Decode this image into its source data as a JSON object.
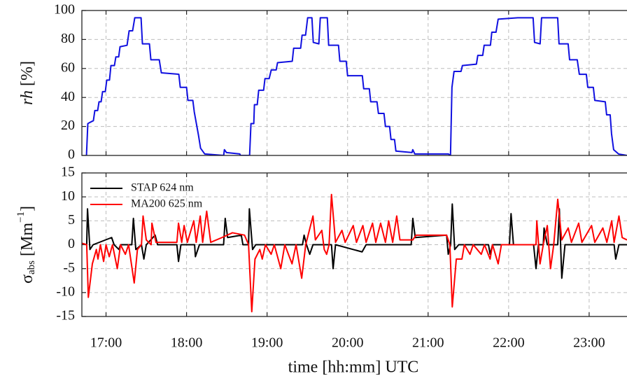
{
  "chart_data": [
    {
      "type": "line",
      "ylabel": {
        "italic": "rh",
        "unit": "[%]"
      },
      "xlim": [
        16.7,
        23.47
      ],
      "ylim": [
        0,
        100
      ],
      "xticks": [
        17,
        18,
        19,
        20,
        21,
        22,
        23
      ],
      "show_xtick_labels": false,
      "yticks": [
        0,
        20,
        40,
        60,
        80,
        100
      ],
      "grid": true,
      "series": [
        {
          "color": "#1010e0",
          "x": [
            16.757,
            16.774,
            16.843,
            16.861,
            16.896,
            16.913,
            16.939,
            16.957,
            16.991,
            17.009,
            17.043,
            17.061,
            17.104,
            17.122,
            17.157,
            17.174,
            17.261,
            17.287,
            17.33,
            17.357,
            17.435,
            17.452,
            17.539,
            17.557,
            17.661,
            17.687,
            17.904,
            17.922,
            18.0,
            18.017,
            18.078,
            18.096,
            18.122,
            18.148,
            18.174,
            18.226,
            18.461,
            18.47,
            18.496,
            18.661,
            18.67,
            18.783,
            18.8,
            18.835,
            18.843,
            18.878,
            18.896,
            18.957,
            18.974,
            19.026,
            19.052,
            19.113,
            19.13,
            19.313,
            19.33,
            19.417,
            19.435,
            19.478,
            19.504,
            19.557,
            19.574,
            19.643,
            19.661,
            19.748,
            19.765,
            19.887,
            19.904,
            19.983,
            20.0,
            20.183,
            20.2,
            20.27,
            20.287,
            20.365,
            20.383,
            20.452,
            20.47,
            20.522,
            20.539,
            20.583,
            20.6,
            20.8,
            20.809,
            20.835,
            21.252,
            21.278,
            21.296,
            21.322,
            21.409,
            21.426,
            21.6,
            21.617,
            21.678,
            21.696,
            21.774,
            21.791,
            21.843,
            21.87,
            22.113,
            22.304,
            22.322,
            22.391,
            22.409,
            22.609,
            22.626,
            22.739,
            22.757,
            22.852,
            22.878,
            22.965,
            22.983,
            23.052,
            23.07,
            23.2,
            23.217,
            23.261,
            23.278,
            23.304,
            23.365,
            23.47
          ],
          "values": [
            0,
            22,
            24,
            31,
            31,
            37,
            37,
            44,
            44,
            52,
            52,
            62,
            62,
            68,
            68,
            75,
            76,
            86,
            86,
            95,
            95,
            77,
            77,
            66,
            66,
            57,
            56,
            47,
            47,
            38,
            38,
            30,
            22,
            14,
            5,
            1,
            0,
            4,
            2,
            1,
            0,
            0,
            22,
            22,
            35,
            35,
            45,
            45,
            53,
            53,
            59,
            59,
            64,
            65,
            74,
            74,
            83,
            83,
            95,
            95,
            78,
            77,
            95,
            95,
            76,
            76,
            65,
            65,
            55,
            55,
            46,
            46,
            37,
            37,
            29,
            29,
            20,
            20,
            11,
            11,
            3,
            2,
            4,
            1,
            1,
            0,
            47,
            58,
            58,
            62,
            63,
            69,
            69,
            76,
            76,
            85,
            85,
            94,
            95,
            95,
            78,
            77,
            95,
            95,
            77,
            77,
            66,
            66,
            56,
            56,
            47,
            47,
            38,
            37,
            28,
            28,
            15,
            4,
            1,
            0
          ]
        }
      ]
    },
    {
      "type": "line",
      "ylabel": {
        "symbol": "σ",
        "subscript": "abs",
        "unit": "[Mm",
        "superscript": "−1",
        "close": "]"
      },
      "xlabel": "time [hh:mm] UTC",
      "xlim": [
        16.7,
        23.47
      ],
      "ylim": [
        -15,
        15
      ],
      "xticks": [
        {
          "value": 17,
          "label": "17:00"
        },
        {
          "value": 18,
          "label": "18:00"
        },
        {
          "value": 19,
          "label": "19:00"
        },
        {
          "value": 20,
          "label": "20:00"
        },
        {
          "value": 21,
          "label": "21:00"
        },
        {
          "value": 22,
          "label": "22:00"
        },
        {
          "value": 23,
          "label": "23:00"
        }
      ],
      "show_xtick_labels": true,
      "yticks": [
        -15,
        -10,
        -5,
        0,
        5,
        10,
        15
      ],
      "grid": true,
      "legend": "upper left",
      "series": [
        {
          "name": "STAP 624 nm",
          "color": "#000000",
          "x": [
            16.7,
            16.76,
            16.77,
            16.8,
            16.84,
            17.07,
            17.1,
            17.16,
            17.18,
            17.32,
            17.34,
            17.37,
            17.44,
            17.47,
            17.5,
            17.61,
            17.64,
            17.88,
            17.9,
            17.93,
            18.1,
            18.11,
            18.16,
            18.46,
            18.48,
            18.51,
            18.68,
            18.7,
            18.77,
            18.78,
            18.82,
            18.86,
            19.44,
            19.46,
            19.49,
            19.53,
            19.57,
            19.8,
            19.82,
            19.85,
            20.18,
            20.23,
            20.79,
            20.81,
            20.84,
            21.23,
            21.25,
            21.28,
            21.3,
            21.33,
            21.38,
            21.75,
            21.77,
            21.8,
            22.01,
            22.03,
            22.06,
            22.31,
            22.34,
            22.37,
            22.43,
            22.44,
            22.48,
            22.61,
            22.63,
            22.66,
            22.7,
            23.31,
            23.33,
            23.37,
            23.47
          ],
          "values": [
            0.3,
            0,
            7.5,
            -1,
            0,
            1.5,
            0,
            -1,
            0,
            0,
            5.5,
            -1,
            0,
            -3,
            0,
            2,
            0,
            0,
            -3.5,
            0,
            0,
            -2.5,
            0,
            0,
            5.5,
            1.5,
            2,
            0,
            0,
            7.5,
            -1,
            0,
            0,
            2,
            0,
            -2,
            0,
            0,
            -5,
            0,
            -1.5,
            0,
            0,
            5.5,
            1.5,
            2,
            -2,
            0,
            8.5,
            -1,
            0,
            0,
            -2,
            0,
            0,
            6.5,
            0,
            0,
            -5,
            0,
            0,
            3.5,
            0,
            0,
            7.5,
            -7,
            0,
            0,
            -3,
            0,
            0
          ]
        },
        {
          "name": "MA200 625 nm",
          "color": "#ff0000",
          "x": [
            16.7,
            16.76,
            16.78,
            16.83,
            16.88,
            16.9,
            16.93,
            16.97,
            17.0,
            17.04,
            17.08,
            17.14,
            17.18,
            17.24,
            17.28,
            17.35,
            17.39,
            17.44,
            17.46,
            17.5,
            17.56,
            17.57,
            17.62,
            17.88,
            17.9,
            17.94,
            17.97,
            18.01,
            18.09,
            18.12,
            18.17,
            18.2,
            18.25,
            18.3,
            18.44,
            18.57,
            18.72,
            18.77,
            18.81,
            18.85,
            18.91,
            18.94,
            18.98,
            19.05,
            19.09,
            19.17,
            19.22,
            19.31,
            19.36,
            19.43,
            19.48,
            19.57,
            19.6,
            19.68,
            19.71,
            19.74,
            19.77,
            19.8,
            19.85,
            19.93,
            19.97,
            20.07,
            20.11,
            20.19,
            20.23,
            20.31,
            20.35,
            20.41,
            20.47,
            20.51,
            20.56,
            20.61,
            20.65,
            20.81,
            20.85,
            21.23,
            21.27,
            21.3,
            21.35,
            21.42,
            21.45,
            21.52,
            21.56,
            21.66,
            21.7,
            21.77,
            21.8,
            21.87,
            21.91,
            22.34,
            22.35,
            22.39,
            22.43,
            22.48,
            22.52,
            22.56,
            22.61,
            22.66,
            22.74,
            22.78,
            22.87,
            22.91,
            23.03,
            23.07,
            23.17,
            23.22,
            23.28,
            23.31,
            23.37,
            23.41,
            23.47
          ],
          "values": [
            0.3,
            0,
            -11,
            -4,
            -1,
            -3,
            0,
            -3.5,
            0,
            -2.5,
            0,
            -5,
            0,
            -2,
            0,
            -8,
            -1,
            0,
            6,
            1,
            0,
            4.5,
            0.5,
            0.5,
            4.5,
            0.5,
            4,
            0.5,
            5,
            0.5,
            6,
            0.5,
            7,
            0.5,
            1.5,
            2.5,
            2,
            0,
            -14,
            -3,
            -1,
            -3,
            0,
            -2,
            0,
            -5,
            0,
            -4,
            0,
            -7,
            0,
            6,
            1,
            3,
            -1,
            -2,
            0,
            10.5,
            0.5,
            3,
            0.5,
            4,
            0.5,
            4,
            0.5,
            4.5,
            0.5,
            4.5,
            0.5,
            5,
            0.5,
            6,
            1,
            1,
            2,
            2,
            0,
            -13,
            -3,
            -3,
            0,
            -2,
            0,
            -2,
            0,
            -3,
            0,
            -4,
            0,
            0,
            5,
            -4,
            0,
            4,
            -5,
            0,
            9.5,
            1,
            3.5,
            0.5,
            4.5,
            0.5,
            4,
            0.5,
            3.5,
            0.5,
            5,
            0.5,
            6,
            1.5,
            1
          ]
        }
      ]
    }
  ]
}
